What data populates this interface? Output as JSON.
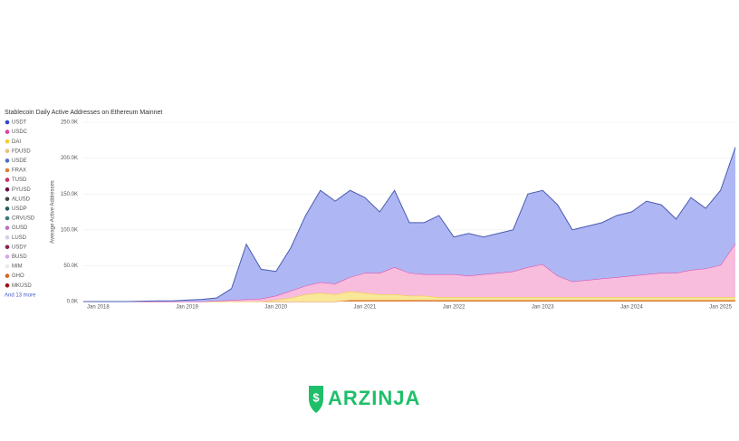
{
  "chart_data": {
    "type": "stacked-area",
    "title": "Stablecoin Daily Active Addresses on Ethereum Mainnet",
    "y_label": "Average Active Addresses",
    "categories": [
      null,
      "Jan 2018",
      null,
      null,
      null,
      null,
      null,
      "Jan 2019",
      null,
      null,
      null,
      null,
      null,
      "Jan 2020",
      null,
      null,
      null,
      null,
      null,
      "Jan 2021",
      null,
      null,
      null,
      null,
      null,
      "Jan 2022",
      null,
      null,
      null,
      null,
      null,
      "Jan 2023",
      null,
      null,
      null,
      null,
      null,
      "Jan 2024",
      null,
      null,
      null,
      null,
      null,
      "Jan 2025",
      null
    ],
    "series": [
      {
        "name": "FRAX",
        "color": "#e0803a",
        "fill": "#e0803a",
        "values": [
          0,
          0,
          0,
          0,
          0,
          0,
          0,
          0,
          0,
          0,
          0,
          0,
          0,
          0,
          0,
          0,
          0,
          0,
          2,
          2,
          2,
          2,
          2,
          2,
          2,
          2,
          2,
          2,
          2,
          2,
          2,
          2,
          2,
          2,
          2,
          2,
          2,
          2,
          2,
          2,
          2,
          2,
          2,
          2,
          2
        ]
      },
      {
        "name": "DAI",
        "color": "#f2d030",
        "fill": "#f9e79a",
        "values": [
          0,
          0,
          0,
          0,
          0,
          0,
          0,
          0,
          0,
          0,
          0,
          0,
          0,
          2,
          5,
          10,
          12,
          10,
          12,
          10,
          8,
          8,
          6,
          6,
          4,
          4,
          4,
          4,
          4,
          4,
          4,
          4,
          4,
          4,
          4,
          4,
          4,
          4,
          4,
          4,
          4,
          4,
          4,
          4,
          4
        ]
      },
      {
        "name": "USDC",
        "color": "#e040a0",
        "fill": "#f8bcdd",
        "values": [
          0,
          0,
          0,
          0,
          0,
          0,
          0,
          0,
          0,
          1,
          2,
          3,
          4,
          6,
          10,
          12,
          15,
          15,
          20,
          28,
          30,
          38,
          32,
          30,
          32,
          32,
          30,
          32,
          34,
          36,
          42,
          46,
          30,
          22,
          24,
          26,
          28,
          30,
          32,
          34,
          34,
          38,
          40,
          45,
          75
        ]
      },
      {
        "name": "USDT",
        "color": "#4a5bb0",
        "fill": "#aeb7f4",
        "values": [
          0,
          0,
          0,
          0,
          0.5,
          1,
          1,
          2,
          3,
          4,
          16,
          77,
          41,
          34,
          60,
          98,
          128,
          115,
          121,
          105,
          85,
          107,
          70,
          72,
          82,
          52,
          59,
          52,
          55,
          58,
          102,
          103,
          99,
          72,
          75,
          78,
          86,
          89,
          102,
          95,
          75,
          101,
          84,
          104,
          134
        ]
      }
    ],
    "legend": [
      "USDT",
      "USDC",
      "DAI",
      "FDUSD",
      "USDE",
      "FRAX",
      "TUSD",
      "PYUSD",
      "ALUSD",
      "USDP",
      "CRVUSD",
      "GUSD",
      "LUSD",
      "USDY",
      "BUSD",
      "MIM",
      "GHO",
      "MKUSD"
    ],
    "legend_colors": [
      "#2f49c8",
      "#e040a0",
      "#f2d030",
      "#e8c27a",
      "#4f6fc8",
      "#e0803a",
      "#c0306a",
      "#6a1040",
      "#444444",
      "#2a5a5a",
      "#3a7a7a",
      "#c070c0",
      "#d0d0e8",
      "#8a2050",
      "#d8a8e8",
      "#e8e8f0",
      "#d06a20",
      "#a01010"
    ],
    "legend_more": "And 13 more",
    "ylim": [
      0,
      250000
    ],
    "yticks": [
      {
        "value": 0,
        "label": "0.0K"
      },
      {
        "value": 50000,
        "label": "50.0K"
      },
      {
        "value": 100000,
        "label": "100.0K"
      },
      {
        "value": 150000,
        "label": "150.0K"
      },
      {
        "value": 200000,
        "label": "200.0K"
      },
      {
        "value": 250000,
        "label": "250.0K"
      }
    ],
    "value_scale": 1000,
    "grid": true
  },
  "brand": "ARZINJA"
}
